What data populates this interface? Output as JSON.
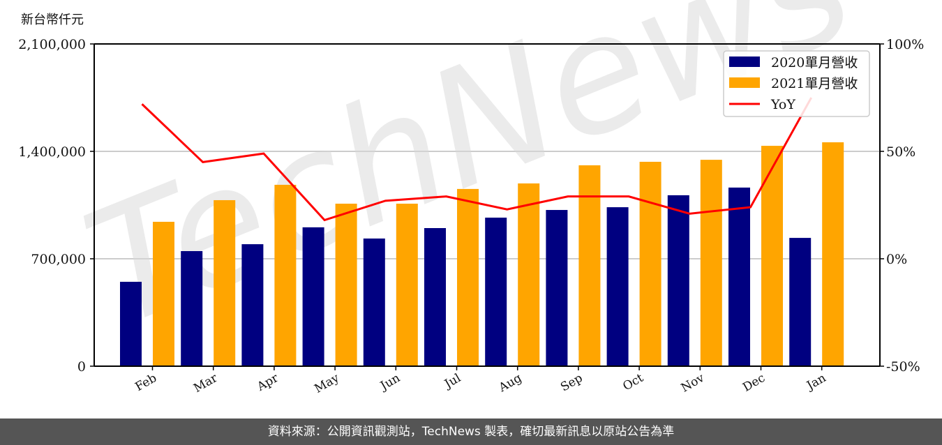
{
  "chart_data": {
    "type": "bar",
    "title": "",
    "ylabel": "新台幣仟元",
    "xlabel": "",
    "categories": [
      "Feb",
      "Mar",
      "Apr",
      "May",
      "Jun",
      "Jul",
      "Aug",
      "Sep",
      "Oct",
      "Nov",
      "Dec",
      "Jan"
    ],
    "series": [
      {
        "name": "2020單月營收",
        "type": "bar",
        "color": "#000080",
        "values": [
          550000,
          750000,
          795000,
          905000,
          832000,
          900000,
          968000,
          1018000,
          1036000,
          1114000,
          1164000,
          836000
        ]
      },
      {
        "name": "2021單月營收",
        "type": "bar",
        "color": "#FFA500",
        "values": [
          941000,
          1082000,
          1182000,
          1059000,
          1059000,
          1155000,
          1191000,
          1309000,
          1332000,
          1345000,
          1436000,
          1459000
        ]
      },
      {
        "name": "YoY",
        "type": "line",
        "axis": "right",
        "color": "#FF0000",
        "unit": "%",
        "values": [
          72,
          45,
          49,
          18,
          27,
          29,
          23,
          29,
          29,
          21,
          24,
          75
        ]
      }
    ],
    "ylim": [
      0,
      2100000
    ],
    "yticks": [
      "0",
      "700,000",
      "1,400,000",
      "2,100,000"
    ],
    "y2lim": [
      -50,
      100
    ],
    "y2ticks": [
      "-50%",
      "0%",
      "50%",
      "100%"
    ],
    "grid": "horizontal",
    "legend_position": "upper right"
  },
  "unit_label": "新台幣仟元",
  "watermark": "TechNews",
  "footer": "資料來源：公開資訊觀測站，TechNews 製表，確切最新訊息以原站公告為準"
}
